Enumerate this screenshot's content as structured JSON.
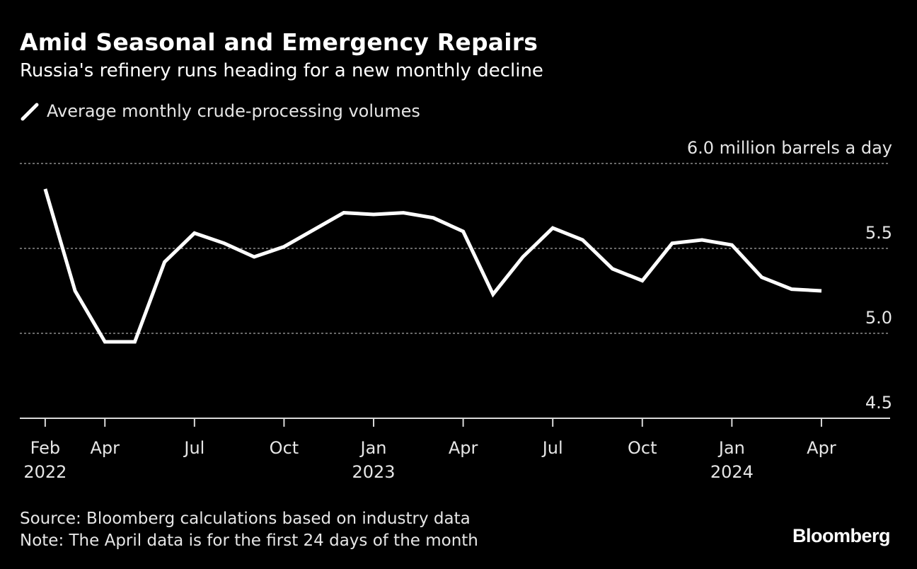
{
  "header": {
    "title": "Amid Seasonal and Emergency Repairs",
    "subtitle": "Russia's refinery runs heading for a new monthly decline"
  },
  "footer": {
    "source": "Source: Bloomberg calculations based on industry data",
    "note": "Note: The April data is for the first 24 days of the month",
    "brand": "Bloomberg"
  },
  "colors": {
    "background": "#000000",
    "line": "#ffffff",
    "grid": "#8c8c8c",
    "text": "#e6e6e6"
  },
  "chart_data": {
    "type": "line",
    "title": "Amid Seasonal and Emergency Repairs",
    "subtitle": "Russia's refinery runs heading for a new monthly decline",
    "unit_label": "6.0 million barrels a day",
    "ylabel": "million barrels a day",
    "xlabel": "",
    "ylim": [
      4.5,
      6.0
    ],
    "yticks": [
      {
        "value": 6.0,
        "label": "6.0 million barrels a day"
      },
      {
        "value": 5.5,
        "label": "5.5"
      },
      {
        "value": 5.0,
        "label": "5.0"
      },
      {
        "value": 4.5,
        "label": "4.5"
      }
    ],
    "grid": true,
    "legend_position": "top-left",
    "xticks": [
      {
        "month_index": 0,
        "line1": "Feb",
        "line2": "2022"
      },
      {
        "month_index": 2,
        "line1": "Apr",
        "line2": ""
      },
      {
        "month_index": 5,
        "line1": "Jul",
        "line2": ""
      },
      {
        "month_index": 8,
        "line1": "Oct",
        "line2": ""
      },
      {
        "month_index": 11,
        "line1": "Jan",
        "line2": "2023"
      },
      {
        "month_index": 14,
        "line1": "Apr",
        "line2": ""
      },
      {
        "month_index": 17,
        "line1": "Jul",
        "line2": ""
      },
      {
        "month_index": 20,
        "line1": "Oct",
        "line2": ""
      },
      {
        "month_index": 23,
        "line1": "Jan",
        "line2": "2024"
      },
      {
        "month_index": 26,
        "line1": "Apr",
        "line2": ""
      }
    ],
    "x_range_months": [
      -0.85,
      28.3
    ],
    "series": [
      {
        "name": "Average monthly crude-processing volumes",
        "x": [
          "2022-02",
          "2022-03",
          "2022-04",
          "2022-05",
          "2022-06",
          "2022-07",
          "2022-08",
          "2022-09",
          "2022-10",
          "2022-11",
          "2022-12",
          "2023-01",
          "2023-02",
          "2023-03",
          "2023-04",
          "2023-05",
          "2023-06",
          "2023-07",
          "2023-08",
          "2023-09",
          "2023-10",
          "2023-11",
          "2023-12",
          "2024-01",
          "2024-02",
          "2024-03",
          "2024-04"
        ],
        "values": [
          5.85,
          5.25,
          4.95,
          4.95,
          5.42,
          5.59,
          5.53,
          5.45,
          5.51,
          5.61,
          5.71,
          5.7,
          5.71,
          5.68,
          5.6,
          5.23,
          5.45,
          5.62,
          5.55,
          5.38,
          5.31,
          5.53,
          5.55,
          5.52,
          5.33,
          5.26,
          5.25
        ]
      }
    ]
  }
}
